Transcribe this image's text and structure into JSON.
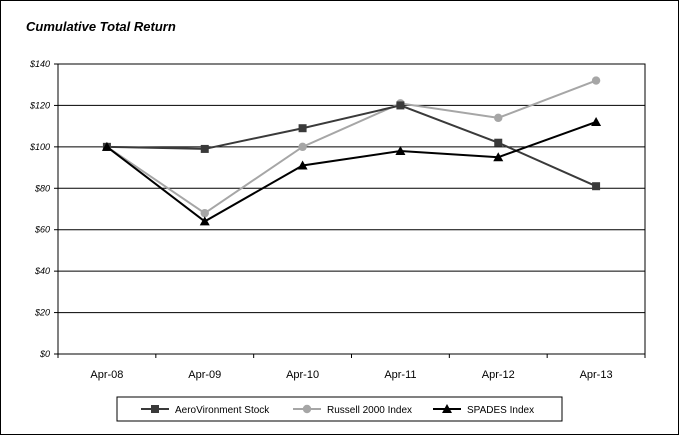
{
  "chart_data": {
    "type": "line",
    "title": "Cumulative Total Return",
    "categories": [
      "Apr-08",
      "Apr-09",
      "Apr-10",
      "Apr-11",
      "Apr-12",
      "Apr-13"
    ],
    "ylim": [
      0,
      140
    ],
    "yticks": [
      0,
      20,
      40,
      60,
      80,
      100,
      120,
      140
    ],
    "ytick_labels": [
      "$0",
      "$20",
      "$40",
      "$60",
      "$80",
      "$100",
      "$120",
      "$140"
    ],
    "grid": true,
    "legend_position": "bottom",
    "series": [
      {
        "name": "AeroVironment Stock",
        "values": [
          100,
          99,
          109,
          120,
          102,
          81
        ],
        "color": "#3a3a3a",
        "marker": "square"
      },
      {
        "name": "Russell 2000 Index",
        "values": [
          100,
          68,
          100,
          121,
          114,
          132
        ],
        "color": "#a6a6a6",
        "marker": "circle"
      },
      {
        "name": "SPADES Index",
        "values": [
          100,
          64,
          91,
          98,
          95,
          112
        ],
        "color": "#000000",
        "marker": "triangle"
      }
    ]
  }
}
